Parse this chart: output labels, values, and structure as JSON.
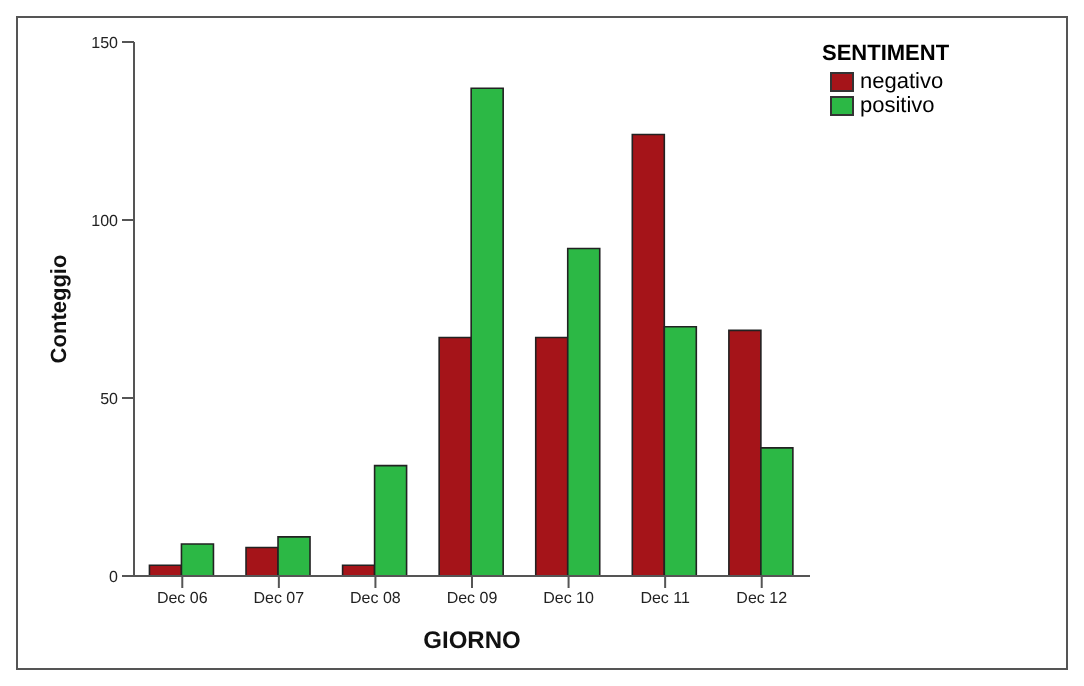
{
  "chart_data": {
    "type": "bar",
    "xlabel": "GIORNO",
    "ylabel": "Conteggio",
    "legend_title": "SENTIMENT",
    "legend": "top right",
    "categories": [
      "Dec 06",
      "Dec 07",
      "Dec 08",
      "Dec 09",
      "Dec 10",
      "Dec 11",
      "Dec 12"
    ],
    "series": [
      {
        "name": "negativo",
        "color": "#a51419",
        "values": [
          3,
          8,
          3,
          67,
          67,
          124,
          69
        ]
      },
      {
        "name": "positivo",
        "color": "#2cb845",
        "values": [
          9,
          11,
          31,
          137,
          92,
          70,
          36
        ]
      }
    ],
    "ylim": [
      0,
      150
    ],
    "yticks": [
      0,
      50,
      100,
      150
    ],
    "grid": false
  }
}
